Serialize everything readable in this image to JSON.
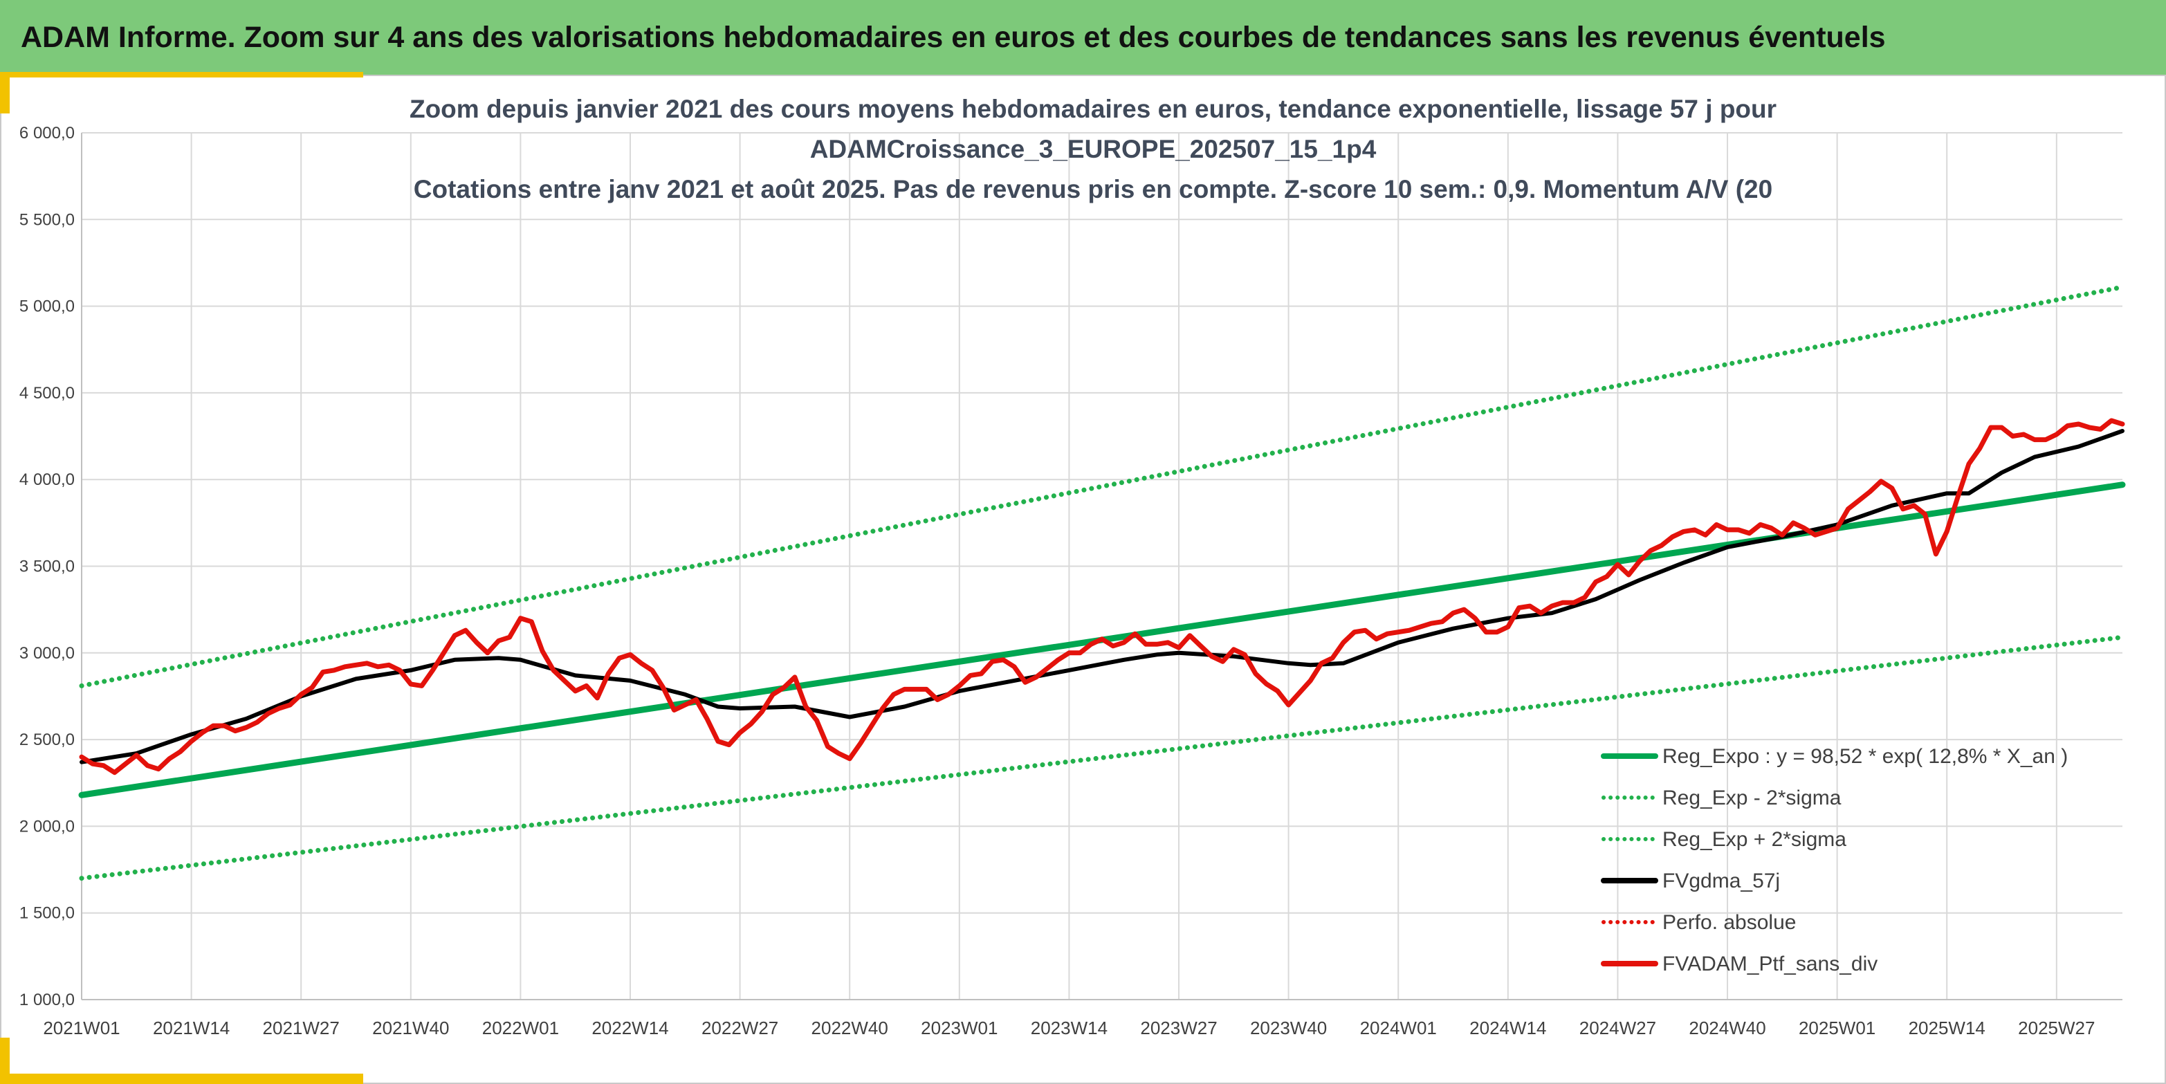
{
  "banner": {
    "title": "ADAM Informe. Zoom sur 4 ans des valorisations hebdomadaires en euros et des courbes de tendances sans les revenus éventuels"
  },
  "colors": {
    "banner": "#7dc97a",
    "accent": "#f2c200",
    "reg_expo": "#00a651",
    "sigma": "#22b14c",
    "fvgdma": "#000000",
    "perfo": "#e3120b",
    "fvadam": "#e3120b"
  },
  "chart_data": {
    "type": "line",
    "title": [
      "Zoom depuis janvier 2021 des cours moyens hebdomadaires en euros, tendance exponentielle, lissage 57 j pour",
      "ADAMCroissance_3_EUROPE_202507_15_1p4",
      "Cotations entre janv 2021 et août 2025. Pas de revenus pris en compte. Z-score 10 sem.: 0,9. Momentum A/V (20"
    ],
    "xlabel": "",
    "ylabel": "",
    "ylim": [
      1000,
      6000
    ],
    "xlim": [
      0,
      186
    ],
    "grid": true,
    "legend_position": "bottom-right",
    "yticks": [
      {
        "value": 1000,
        "label": "1 000,0"
      },
      {
        "value": 1500,
        "label": "1 500,0"
      },
      {
        "value": 2000,
        "label": "2 000,0"
      },
      {
        "value": 2500,
        "label": "2 500,0"
      },
      {
        "value": 3000,
        "label": "3 000,0"
      },
      {
        "value": 3500,
        "label": "3 500,0"
      },
      {
        "value": 4000,
        "label": "4 000,0"
      },
      {
        "value": 4500,
        "label": "4 500,0"
      },
      {
        "value": 5000,
        "label": "5 000,0"
      },
      {
        "value": 5500,
        "label": "5 500,0"
      },
      {
        "value": 6000,
        "label": "6 000,0"
      }
    ],
    "xticks": [
      {
        "x": 0,
        "label": "2021W01"
      },
      {
        "x": 10,
        "label": "2021W14"
      },
      {
        "x": 20,
        "label": "2021W27"
      },
      {
        "x": 30,
        "label": "2021W40"
      },
      {
        "x": 40,
        "label": "2022W01"
      },
      {
        "x": 50,
        "label": "2022W14"
      },
      {
        "x": 60,
        "label": "2022W27"
      },
      {
        "x": 70,
        "label": "2022W40"
      },
      {
        "x": 80,
        "label": "2023W01"
      },
      {
        "x": 90,
        "label": "2023W14"
      },
      {
        "x": 100,
        "label": "2023W27"
      },
      {
        "x": 110,
        "label": "2023W40"
      },
      {
        "x": 120,
        "label": "2024W01"
      },
      {
        "x": 130,
        "label": "2024W14"
      },
      {
        "x": 140,
        "label": "2024W27"
      },
      {
        "x": 150,
        "label": "2024W40"
      },
      {
        "x": 160,
        "label": "2025W01"
      },
      {
        "x": 170,
        "label": "2025W14"
      },
      {
        "x": 180,
        "label": "2025W27"
      }
    ],
    "series": [
      {
        "name": "Reg_Expo : y = 98,52 * exp( 12,8% *  X_an )",
        "style": "solid-thick",
        "color": "#00a651",
        "points": [
          [
            0,
            2180
          ],
          [
            186,
            3970
          ]
        ]
      },
      {
        "name": "Reg_Exp - 2*sigma",
        "style": "dotted",
        "color": "#22b14c",
        "points": [
          [
            0,
            1700
          ],
          [
            186,
            3090
          ]
        ]
      },
      {
        "name": "Reg_Exp + 2*sigma",
        "style": "dotted",
        "color": "#22b14c",
        "points": [
          [
            0,
            2810
          ],
          [
            186,
            5110
          ]
        ]
      },
      {
        "name": "FVgdma_57j",
        "style": "solid",
        "color": "#000000",
        "points": [
          [
            0,
            2370
          ],
          [
            5,
            2420
          ],
          [
            10,
            2530
          ],
          [
            15,
            2620
          ],
          [
            20,
            2750
          ],
          [
            25,
            2850
          ],
          [
            30,
            2900
          ],
          [
            34,
            2960
          ],
          [
            38,
            2970
          ],
          [
            40,
            2960
          ],
          [
            45,
            2870
          ],
          [
            50,
            2840
          ],
          [
            55,
            2760
          ],
          [
            58,
            2690
          ],
          [
            60,
            2680
          ],
          [
            65,
            2690
          ],
          [
            70,
            2630
          ],
          [
            75,
            2690
          ],
          [
            80,
            2780
          ],
          [
            85,
            2840
          ],
          [
            90,
            2900
          ],
          [
            95,
            2960
          ],
          [
            98,
            2990
          ],
          [
            100,
            3000
          ],
          [
            105,
            2980
          ],
          [
            110,
            2940
          ],
          [
            112,
            2930
          ],
          [
            115,
            2940
          ],
          [
            120,
            3060
          ],
          [
            125,
            3140
          ],
          [
            130,
            3200
          ],
          [
            134,
            3230
          ],
          [
            138,
            3310
          ],
          [
            142,
            3420
          ],
          [
            146,
            3520
          ],
          [
            150,
            3610
          ],
          [
            155,
            3670
          ],
          [
            160,
            3740
          ],
          [
            165,
            3850
          ],
          [
            170,
            3920
          ],
          [
            172,
            3920
          ],
          [
            175,
            4040
          ],
          [
            178,
            4130
          ],
          [
            182,
            4190
          ],
          [
            186,
            4280
          ]
        ]
      },
      {
        "name": "FVADAM_Ptf_sans_div",
        "style": "solid-thick",
        "color": "#e3120b",
        "points": [
          [
            0,
            2400
          ],
          [
            1,
            2360
          ],
          [
            2,
            2350
          ],
          [
            3,
            2310
          ],
          [
            4,
            2360
          ],
          [
            5,
            2410
          ],
          [
            6,
            2350
          ],
          [
            7,
            2330
          ],
          [
            8,
            2390
          ],
          [
            9,
            2430
          ],
          [
            10,
            2490
          ],
          [
            11,
            2540
          ],
          [
            12,
            2580
          ],
          [
            13,
            2580
          ],
          [
            14,
            2550
          ],
          [
            15,
            2570
          ],
          [
            16,
            2600
          ],
          [
            17,
            2650
          ],
          [
            18,
            2680
          ],
          [
            19,
            2700
          ],
          [
            20,
            2760
          ],
          [
            21,
            2800
          ],
          [
            22,
            2890
          ],
          [
            23,
            2900
          ],
          [
            24,
            2920
          ],
          [
            25,
            2930
          ],
          [
            26,
            2940
          ],
          [
            27,
            2920
          ],
          [
            28,
            2930
          ],
          [
            29,
            2900
          ],
          [
            30,
            2820
          ],
          [
            31,
            2810
          ],
          [
            32,
            2900
          ],
          [
            33,
            3000
          ],
          [
            34,
            3100
          ],
          [
            35,
            3130
          ],
          [
            36,
            3060
          ],
          [
            37,
            3000
          ],
          [
            38,
            3070
          ],
          [
            39,
            3090
          ],
          [
            40,
            3200
          ],
          [
            41,
            3180
          ],
          [
            42,
            3010
          ],
          [
            43,
            2900
          ],
          [
            44,
            2840
          ],
          [
            45,
            2780
          ],
          [
            46,
            2810
          ],
          [
            47,
            2740
          ],
          [
            48,
            2880
          ],
          [
            49,
            2970
          ],
          [
            50,
            2990
          ],
          [
            51,
            2940
          ],
          [
            52,
            2900
          ],
          [
            53,
            2800
          ],
          [
            54,
            2670
          ],
          [
            55,
            2700
          ],
          [
            56,
            2730
          ],
          [
            57,
            2620
          ],
          [
            58,
            2490
          ],
          [
            59,
            2470
          ],
          [
            60,
            2540
          ],
          [
            61,
            2590
          ],
          [
            62,
            2660
          ],
          [
            63,
            2760
          ],
          [
            64,
            2800
          ],
          [
            65,
            2860
          ],
          [
            66,
            2690
          ],
          [
            67,
            2610
          ],
          [
            68,
            2460
          ],
          [
            69,
            2420
          ],
          [
            70,
            2390
          ],
          [
            71,
            2480
          ],
          [
            72,
            2580
          ],
          [
            73,
            2680
          ],
          [
            74,
            2760
          ],
          [
            75,
            2790
          ],
          [
            76,
            2790
          ],
          [
            77,
            2790
          ],
          [
            78,
            2730
          ],
          [
            79,
            2760
          ],
          [
            80,
            2810
          ],
          [
            81,
            2870
          ],
          [
            82,
            2880
          ],
          [
            83,
            2950
          ],
          [
            84,
            2960
          ],
          [
            85,
            2920
          ],
          [
            86,
            2830
          ],
          [
            87,
            2860
          ],
          [
            88,
            2910
          ],
          [
            89,
            2960
          ],
          [
            90,
            3000
          ],
          [
            91,
            3000
          ],
          [
            92,
            3050
          ],
          [
            93,
            3080
          ],
          [
            94,
            3040
          ],
          [
            95,
            3060
          ],
          [
            96,
            3110
          ],
          [
            97,
            3050
          ],
          [
            98,
            3050
          ],
          [
            99,
            3060
          ],
          [
            100,
            3030
          ],
          [
            101,
            3100
          ],
          [
            102,
            3040
          ],
          [
            103,
            2980
          ],
          [
            104,
            2950
          ],
          [
            105,
            3020
          ],
          [
            106,
            2990
          ],
          [
            107,
            2880
          ],
          [
            108,
            2820
          ],
          [
            109,
            2780
          ],
          [
            110,
            2700
          ],
          [
            111,
            2770
          ],
          [
            112,
            2840
          ],
          [
            113,
            2940
          ],
          [
            114,
            2970
          ],
          [
            115,
            3060
          ],
          [
            116,
            3120
          ],
          [
            117,
            3130
          ],
          [
            118,
            3080
          ],
          [
            119,
            3110
          ],
          [
            120,
            3120
          ],
          [
            121,
            3130
          ],
          [
            122,
            3150
          ],
          [
            123,
            3170
          ],
          [
            124,
            3180
          ],
          [
            125,
            3230
          ],
          [
            126,
            3250
          ],
          [
            127,
            3200
          ],
          [
            128,
            3120
          ],
          [
            129,
            3120
          ],
          [
            130,
            3150
          ],
          [
            131,
            3260
          ],
          [
            132,
            3270
          ],
          [
            133,
            3230
          ],
          [
            134,
            3270
          ],
          [
            135,
            3290
          ],
          [
            136,
            3290
          ],
          [
            137,
            3320
          ],
          [
            138,
            3410
          ],
          [
            139,
            3440
          ],
          [
            140,
            3510
          ],
          [
            141,
            3450
          ],
          [
            142,
            3530
          ],
          [
            143,
            3590
          ],
          [
            144,
            3620
          ],
          [
            145,
            3670
          ],
          [
            146,
            3700
          ],
          [
            147,
            3710
          ],
          [
            148,
            3680
          ],
          [
            149,
            3740
          ],
          [
            150,
            3710
          ],
          [
            151,
            3710
          ],
          [
            152,
            3690
          ],
          [
            153,
            3740
          ],
          [
            154,
            3720
          ],
          [
            155,
            3680
          ],
          [
            156,
            3750
          ],
          [
            157,
            3720
          ],
          [
            158,
            3680
          ],
          [
            159,
            3700
          ],
          [
            160,
            3720
          ],
          [
            161,
            3830
          ],
          [
            162,
            3880
          ],
          [
            163,
            3930
          ],
          [
            164,
            3990
          ],
          [
            165,
            3950
          ],
          [
            166,
            3830
          ],
          [
            167,
            3850
          ],
          [
            168,
            3800
          ],
          [
            169,
            3570
          ],
          [
            170,
            3700
          ],
          [
            171,
            3900
          ],
          [
            172,
            4090
          ],
          [
            173,
            4180
          ],
          [
            174,
            4300
          ],
          [
            175,
            4300
          ],
          [
            176,
            4250
          ],
          [
            177,
            4260
          ],
          [
            178,
            4230
          ],
          [
            179,
            4230
          ],
          [
            180,
            4260
          ],
          [
            181,
            4310
          ],
          [
            182,
            4320
          ],
          [
            183,
            4300
          ],
          [
            184,
            4290
          ],
          [
            185,
            4340
          ],
          [
            186,
            4320
          ]
        ]
      }
    ],
    "legend": [
      {
        "label": "Reg_Expo : y = 98,52 * exp( 12,8% *  X_an )",
        "color": "#00a651",
        "style": "solid-thick"
      },
      {
        "label": "Reg_Exp - 2*sigma",
        "color": "#22b14c",
        "style": "dotted"
      },
      {
        "label": "Reg_Exp + 2*sigma",
        "color": "#22b14c",
        "style": "dotted"
      },
      {
        "label": "FVgdma_57j",
        "color": "#000000",
        "style": "solid-thick"
      },
      {
        "label": "Perfo. absolue",
        "color": "#e3120b",
        "style": "dotted"
      },
      {
        "label": "FVADAM_Ptf_sans_div",
        "color": "#e3120b",
        "style": "solid-thick"
      }
    ]
  }
}
